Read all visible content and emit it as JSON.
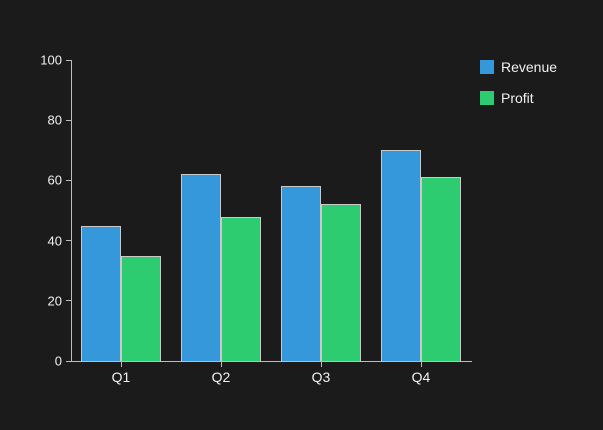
{
  "chart_data": {
    "type": "bar",
    "title": "",
    "xlabel": "",
    "ylabel": "",
    "categories": [
      "Q1",
      "Q2",
      "Q3",
      "Q4"
    ],
    "series": [
      {
        "name": "Revenue",
        "color": "#3498db",
        "values": [
          45,
          62,
          58,
          70
        ]
      },
      {
        "name": "Profit",
        "color": "#2ecc71",
        "values": [
          35,
          48,
          52,
          61
        ]
      }
    ],
    "ylim": [
      0,
      100
    ],
    "yticks": [
      0,
      20,
      40,
      60,
      80,
      100
    ],
    "grid": false,
    "legend_position": "top-right"
  },
  "colors": {
    "background": "#1b1b1b",
    "axis": "#bdbdbd",
    "text": "#f0f0f0",
    "bar_edge": "#c9c9c9"
  }
}
